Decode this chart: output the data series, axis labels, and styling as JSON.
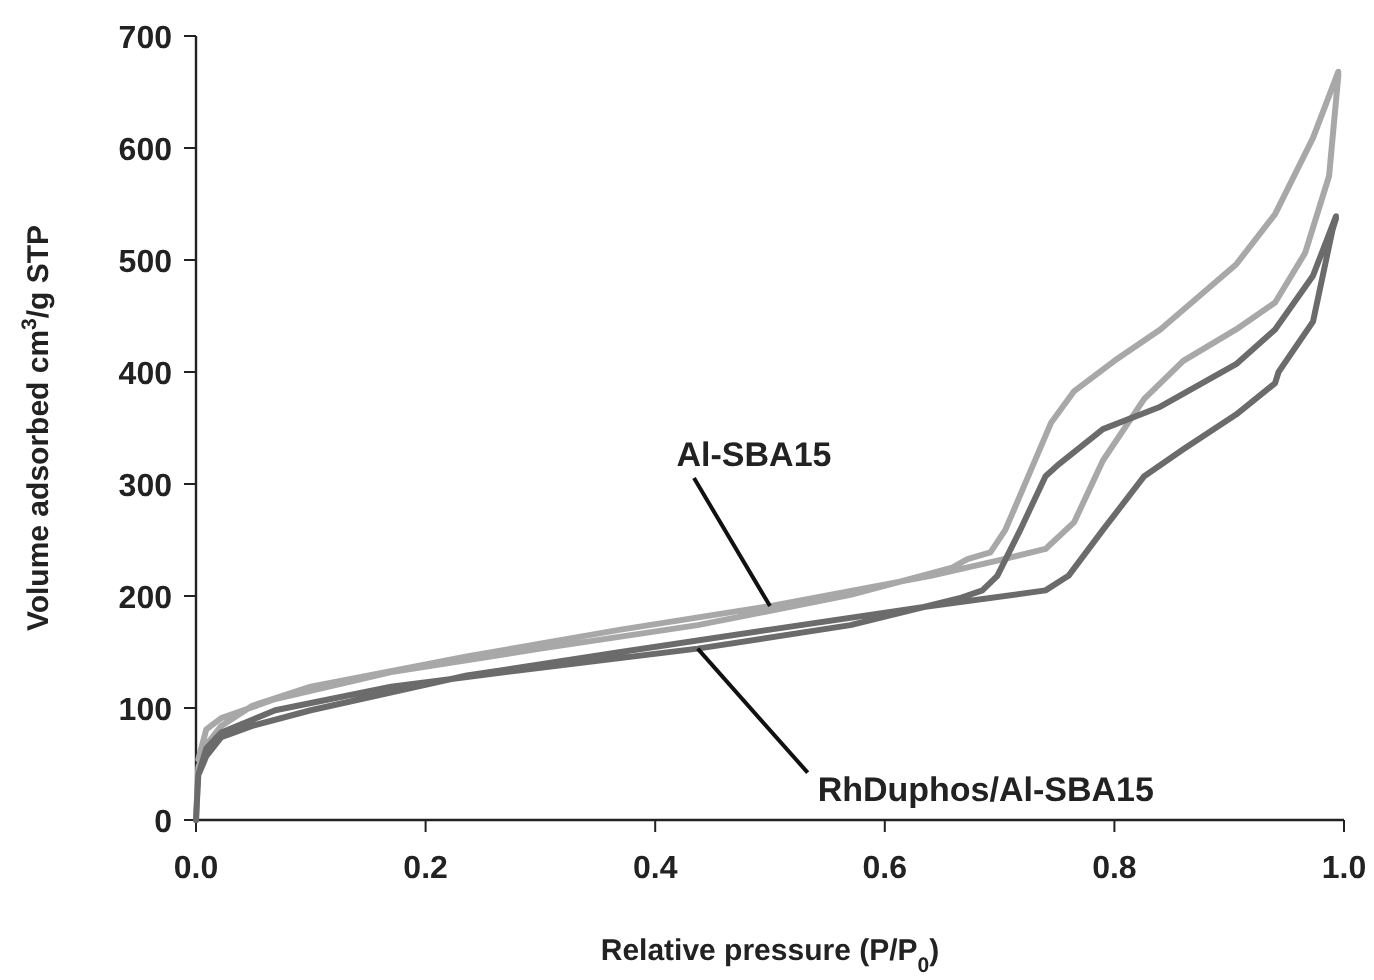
{
  "chart_data": {
    "type": "line",
    "xlabel": "Relative pressure (P/P$_{0}$)",
    "ylabel": "Volume adsorbed cm$^{3}$/g STP",
    "xlim": [
      0,
      1
    ],
    "xticks": [
      {
        "value": 0,
        "label": "0.0"
      },
      {
        "value": 0.2,
        "label": "0.2"
      },
      {
        "value": 0.4,
        "label": "0.4"
      },
      {
        "value": 0.6,
        "label": "0.6"
      },
      {
        "value": 0.8,
        "label": "0.8"
      },
      {
        "value": 1,
        "label": "1.0"
      }
    ],
    "ylim": [
      0,
      700
    ],
    "yticks": [
      0,
      100,
      200,
      300,
      400,
      500,
      600,
      700
    ],
    "grid": false,
    "legend": false,
    "marker": "none",
    "line_style": "solid",
    "series": [
      {
        "name": "Al-SBA15",
        "color": "#a8a8a8",
        "x": [
          0,
          0.002,
          0.009,
          0.022,
          0.049,
          0.1,
          0.236,
          0.37,
          0.5,
          0.64,
          0.7,
          0.74,
          0.765,
          0.79,
          0.826,
          0.86,
          0.906,
          0.94,
          0.966,
          0.987,
          0.995,
          0.995,
          0.973,
          0.94,
          0.906,
          0.84,
          0.8,
          0.765,
          0.745,
          0.725,
          0.705,
          0.692,
          0.672,
          0.658,
          0.57,
          0.437,
          0.3,
          0.17,
          0.069,
          0.022,
          0.009,
          0.002
        ],
        "values": [
          0,
          47,
          67,
          84,
          102,
          119,
          146,
          170,
          191,
          218,
          232,
          242,
          266,
          321,
          376,
          410,
          438,
          462,
          506,
          575,
          664,
          668,
          609,
          541,
          496,
          438,
          410,
          383,
          355,
          307,
          259,
          239,
          233,
          225,
          201,
          174,
          153,
          132,
          108,
          91,
          81,
          54
        ]
      },
      {
        "name": "RhDuphos/Al-SBA15",
        "color": "#6b6b6b",
        "x": [
          0,
          0.002,
          0.009,
          0.022,
          0.049,
          0.1,
          0.236,
          0.37,
          0.5,
          0.64,
          0.74,
          0.76,
          0.79,
          0.826,
          0.86,
          0.906,
          0.94,
          0.943,
          0.973,
          0.99,
          0.993,
          0.993,
          0.973,
          0.94,
          0.906,
          0.84,
          0.79,
          0.752,
          0.74,
          0.718,
          0.698,
          0.685,
          0.665,
          0.57,
          0.437,
          0.3,
          0.17,
          0.069,
          0.022,
          0.009,
          0.002
        ],
        "values": [
          0,
          40,
          57,
          74,
          84,
          98,
          129,
          150,
          170,
          191,
          205,
          218,
          259,
          307,
          331,
          362,
          390,
          400,
          445,
          527,
          537,
          539,
          486,
          438,
          407,
          369,
          349,
          318,
          307,
          259,
          218,
          205,
          198,
          174,
          153,
          136,
          119,
          98,
          78,
          64,
          40
        ]
      }
    ]
  }
}
